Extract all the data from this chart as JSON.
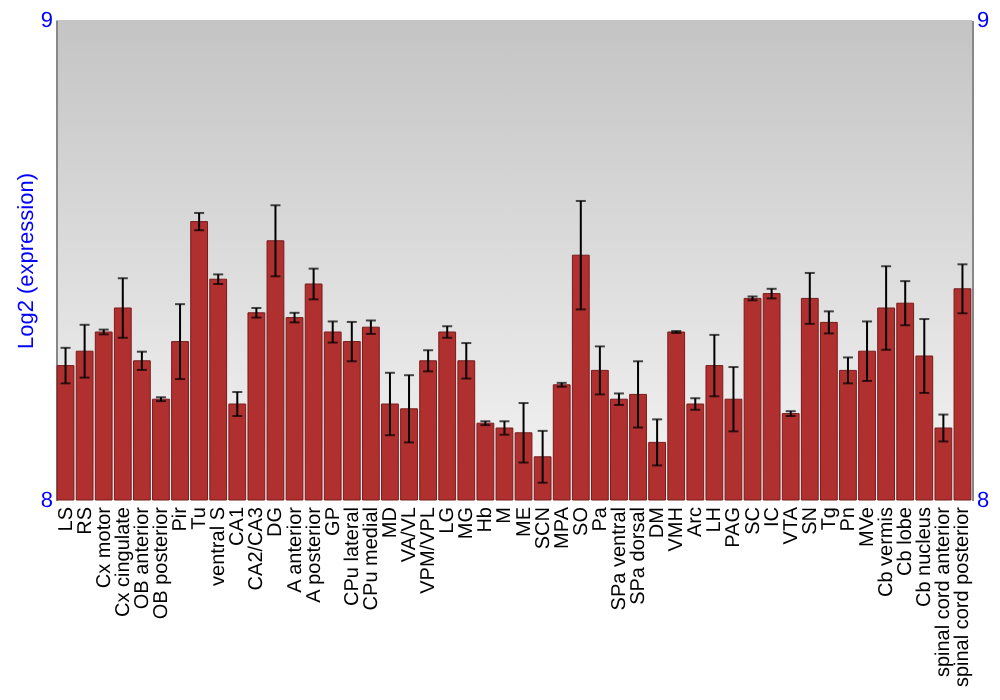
{
  "chart_data": {
    "type": "bar",
    "ylabel": "Log2 (expression)",
    "color": "#b03030",
    "categories": [
      "LS",
      "RS",
      "Cx motor",
      "Cx cingulate",
      "OB anterior",
      "OB posterior",
      "Pir",
      "Tu",
      "ventral S",
      "CA1",
      "CA2/CA3",
      "DG",
      "A anterior",
      "A posterior",
      "GP",
      "CPu lateral",
      "CPu medial",
      "MD",
      "VA/VL",
      "VPM/VPL",
      "LG",
      "MG",
      "Hb",
      "M",
      "ME",
      "SCN",
      "MPA",
      "SO",
      "Pa",
      "SPa ventral",
      "SPa dorsal",
      "DM",
      "VMH",
      "Arc",
      "LH",
      "PAG",
      "SC",
      "IC",
      "VTA",
      "SN",
      "Tg",
      "Pn",
      "MVe",
      "Cb vermis",
      "Cb lobe",
      "Cb nucleus",
      "spinal cord anterior",
      "spinal cord posterior"
    ],
    "values": [
      8.28,
      8.31,
      8.35,
      8.4,
      8.29,
      8.21,
      8.33,
      8.58,
      8.46,
      8.2,
      8.39,
      8.54,
      8.38,
      8.45,
      8.35,
      8.33,
      8.36,
      8.2,
      8.19,
      8.29,
      8.35,
      8.29,
      8.16,
      8.15,
      8.14,
      8.09,
      8.24,
      8.51,
      8.27,
      8.21,
      8.22,
      8.12,
      8.35,
      8.2,
      8.28,
      8.21,
      8.42,
      8.43,
      8.18,
      8.42,
      8.37,
      8.27,
      8.31,
      8.4,
      8.41,
      8.3,
      8.15,
      8.44
    ],
    "errors": [
      0.037,
      0.055,
      0.005,
      0.062,
      0.019,
      0.004,
      0.078,
      0.018,
      0.01,
      0.025,
      0.01,
      0.074,
      0.01,
      0.032,
      0.022,
      0.041,
      0.014,
      0.065,
      0.07,
      0.022,
      0.012,
      0.037,
      0.004,
      0.014,
      0.062,
      0.054,
      0.004,
      0.113,
      0.05,
      0.012,
      0.069,
      0.048,
      0.002,
      0.012,
      0.064,
      0.067,
      0.004,
      0.01,
      0.005,
      0.053,
      0.023,
      0.027,
      0.062,
      0.087,
      0.046,
      0.077,
      0.028,
      0.051
    ],
    "ylim": [
      8,
      9
    ],
    "yticks": [
      8,
      9
    ],
    "y2lim": [
      8,
      9
    ],
    "y2ticks": [
      8,
      9
    ]
  }
}
